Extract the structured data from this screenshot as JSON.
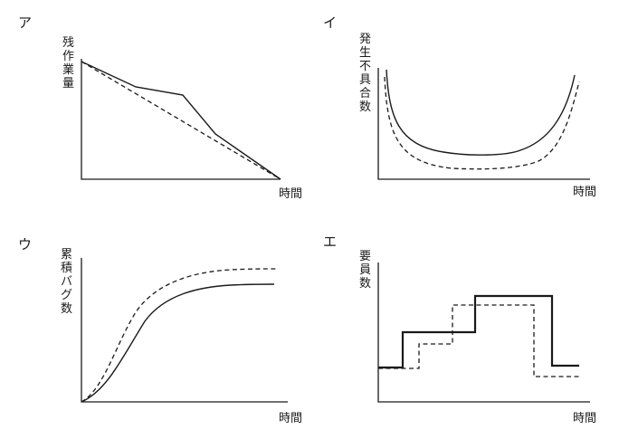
{
  "panels": {
    "a": {
      "label": "ア",
      "ylabel": [
        "残",
        "作",
        "業",
        "量"
      ],
      "xlabel": "時間"
    },
    "b": {
      "label": "イ",
      "ylabel": [
        "発",
        "生",
        "不",
        "具",
        "合",
        "数"
      ],
      "xlabel": "時間"
    },
    "c": {
      "label": "ウ",
      "ylabel": [
        "累",
        "積",
        "バ",
        "グ",
        "数"
      ],
      "xlabel": "時間"
    },
    "d": {
      "label": "エ",
      "ylabel": [
        "要",
        "員",
        "数"
      ],
      "xlabel": "時間"
    }
  },
  "colors": {
    "ink": "#1a1a1a",
    "background": "#ffffff"
  }
}
